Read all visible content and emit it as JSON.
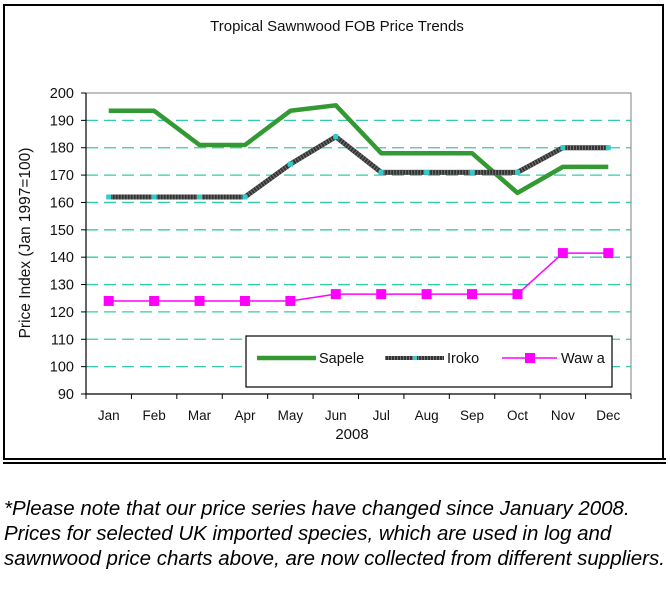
{
  "chart_data": {
    "type": "line",
    "title": "Tropical Sawnwood FOB Price Trends",
    "xlabel": "2008",
    "ylabel": "Price Index (Jan 1997=100)",
    "categories": [
      "Jan",
      "Feb",
      "Mar",
      "Apr",
      "May",
      "Jun",
      "Jul",
      "Aug",
      "Sep",
      "Oct",
      "Nov",
      "Dec"
    ],
    "ylim": [
      90,
      200
    ],
    "yticks": [
      90,
      100,
      110,
      120,
      130,
      140,
      150,
      160,
      170,
      180,
      190,
      200
    ],
    "grid": "horizontal dashed",
    "legend_position": "bottom-right inside plot",
    "series": [
      {
        "name": "Sapele",
        "color": "#339933",
        "values": [
          193.5,
          193.5,
          181,
          181,
          193.5,
          195.5,
          178,
          178,
          178,
          163.5,
          173,
          173
        ]
      },
      {
        "name": "Iroko",
        "color": "#333333",
        "marker_color": "#33cccc",
        "values": [
          162,
          162,
          162,
          162,
          174,
          184,
          171,
          171,
          171,
          171,
          180,
          180
        ]
      },
      {
        "name": "Waw a",
        "color": "#ff00ff",
        "values": [
          124,
          124,
          124,
          124,
          124,
          126.5,
          126.5,
          126.5,
          126.5,
          126.5,
          141.5,
          141.5
        ]
      }
    ]
  },
  "note": "*Please note that our price series have changed since January 2008. Prices for selected UK imported species, which are used in log and sawnwood price charts above, are now collected from different suppliers."
}
